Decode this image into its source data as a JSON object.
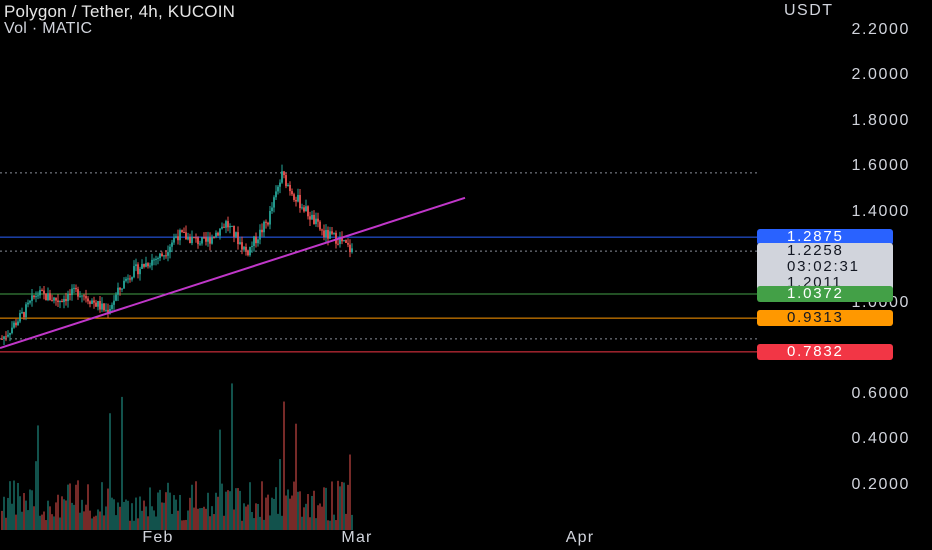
{
  "header": {
    "title": "Polygon / Tether, 4h, KUCOIN",
    "subtitle": "Vol · MATIC"
  },
  "price_axis": {
    "unit": "USDT",
    "labels": [
      "2.2000",
      "2.0000",
      "1.8000",
      "1.6000",
      "1.4000",
      "1.0000",
      "0.6000",
      "0.4000",
      "0.2000"
    ],
    "label_values": [
      2.2,
      2.0,
      1.8,
      1.6,
      1.4,
      1.0,
      0.6,
      0.4,
      0.2
    ]
  },
  "price_tags": {
    "blue": {
      "text": "1.2875",
      "value": 1.2875,
      "color": "#2962ff"
    },
    "current_price": {
      "text": "1.2258",
      "value": 1.2258
    },
    "countdown": {
      "text": "03:02:31"
    },
    "low": {
      "text": "1.2011",
      "value": 1.2011
    },
    "green": {
      "text": "1.0372",
      "value": 1.0372,
      "color": "#43a047"
    },
    "orange": {
      "text": "0.9313",
      "value": 0.9313,
      "color": "#ff9800"
    },
    "red": {
      "text": "0.7832",
      "value": 0.7832,
      "color": "#f23645"
    }
  },
  "time_axis": {
    "labels": [
      "Feb",
      "Mar",
      "Apr"
    ]
  },
  "colors": {
    "up": "#26a69a",
    "down": "#ef5350",
    "trendline": "#c037c9",
    "background": "#000000"
  },
  "chart_data": {
    "type": "candlestick",
    "title": "Polygon / Tether, 4h, KUCOIN",
    "ylabel": "USDT",
    "ylim": [
      0.0,
      2.3
    ],
    "x_tick_labels": [
      "Feb",
      "Mar",
      "Apr"
    ],
    "horizontal_levels": [
      {
        "value": 1.2875,
        "color": "#2962ff"
      },
      {
        "value": 1.0372,
        "color": "#43a047"
      },
      {
        "value": 0.9313,
        "color": "#ff9800"
      },
      {
        "value": 0.7832,
        "color": "#f23645"
      }
    ],
    "dotted_levels": [
      1.57,
      1.2258,
      0.84
    ],
    "trendline": {
      "color": "#c037c9",
      "start": {
        "x": "2023-01-15",
        "y": 0.8
      },
      "end": {
        "x": "2023-03-13",
        "y": 1.46
      }
    },
    "anchors": [
      {
        "t": 0,
        "p": 0.84
      },
      {
        "t": 0.06,
        "p": 0.95
      },
      {
        "t": 0.1,
        "p": 1.04
      },
      {
        "t": 0.16,
        "p": 1.01
      },
      {
        "t": 0.22,
        "p": 1.05
      },
      {
        "t": 0.3,
        "p": 0.96
      },
      {
        "t": 0.36,
        "p": 1.12
      },
      {
        "t": 0.42,
        "p": 1.18
      },
      {
        "t": 0.46,
        "p": 1.21
      },
      {
        "t": 0.5,
        "p": 1.3
      },
      {
        "t": 0.58,
        "p": 1.26
      },
      {
        "t": 0.64,
        "p": 1.35
      },
      {
        "t": 0.7,
        "p": 1.22
      },
      {
        "t": 0.76,
        "p": 1.36
      },
      {
        "t": 0.8,
        "p": 1.56
      },
      {
        "t": 0.84,
        "p": 1.46
      },
      {
        "t": 0.88,
        "p": 1.38
      },
      {
        "t": 0.92,
        "p": 1.3
      },
      {
        "t": 0.96,
        "p": 1.28
      },
      {
        "t": 1.0,
        "p": 1.2258
      }
    ],
    "volume_scale_max": 0.7
  }
}
